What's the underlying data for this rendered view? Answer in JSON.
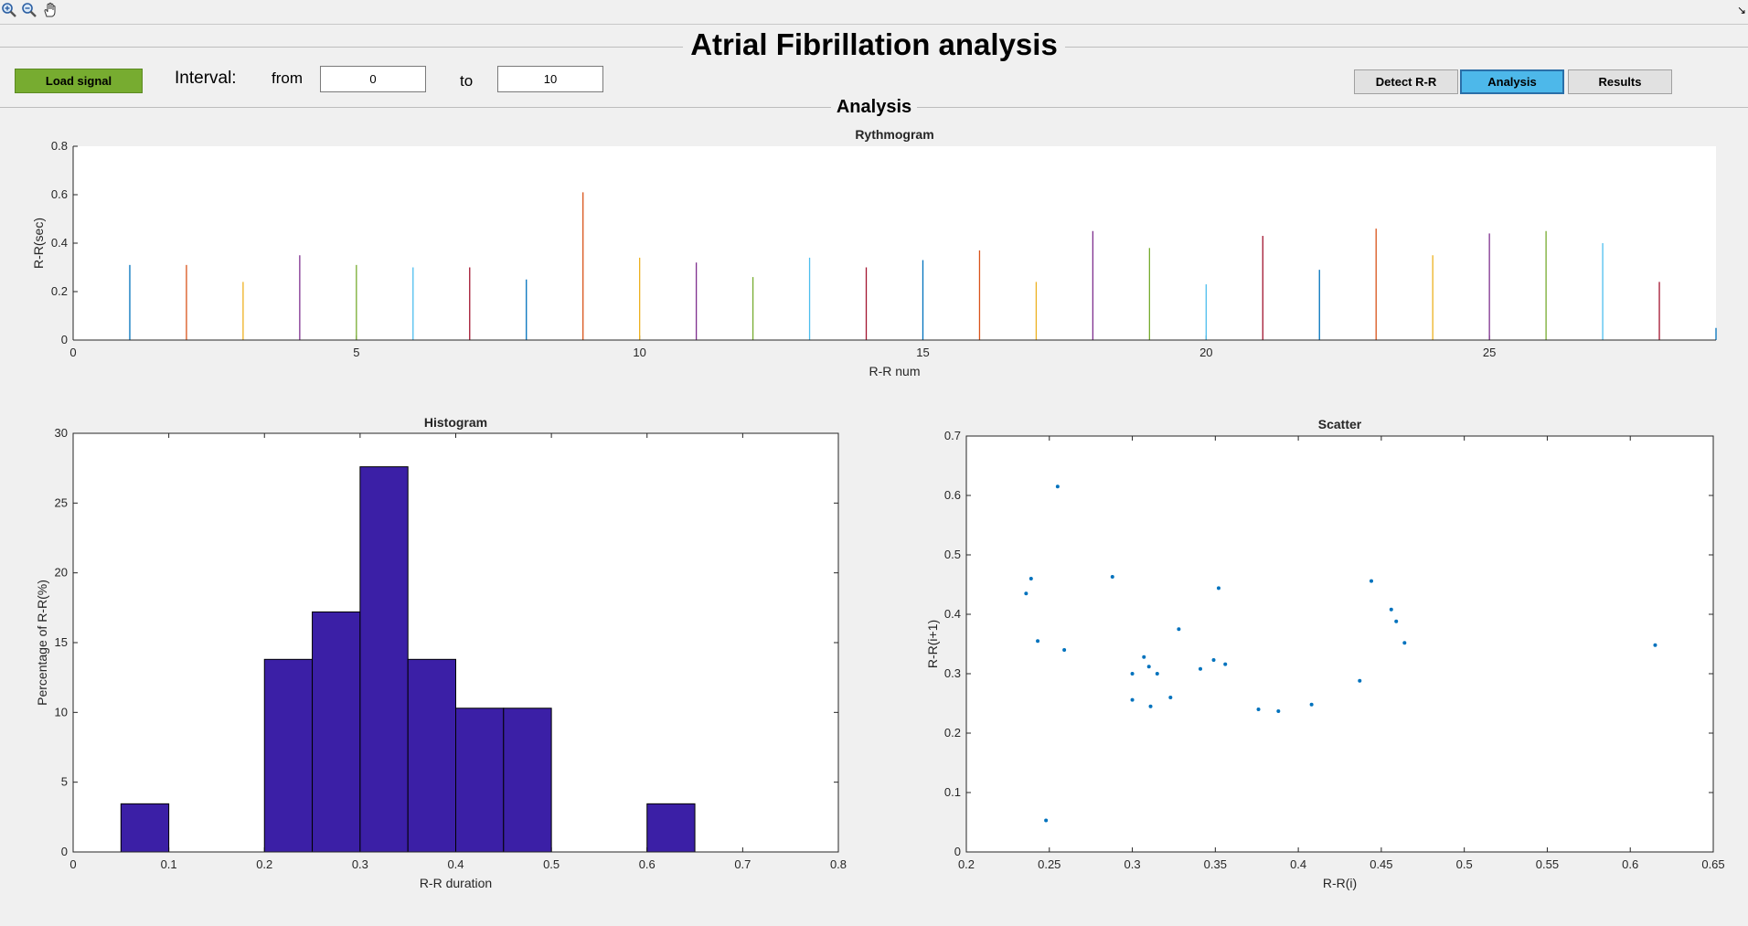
{
  "app": {
    "title": "Atrial Fibrillation analysis",
    "panel_title": "Analysis"
  },
  "toolbar": {
    "icons": [
      "zoom-in-icon",
      "zoom-out-icon",
      "pan-hand-icon"
    ],
    "corner_symbol": "↘"
  },
  "controls": {
    "load_label": "Load signal",
    "interval_label": "Interval:",
    "from_label": "from",
    "from_value": "0",
    "to_label": "to",
    "to_value": "10",
    "buttons": [
      {
        "label": "Detect R-R",
        "active": false
      },
      {
        "label": "Analysis",
        "active": true
      },
      {
        "label": "Results",
        "active": false
      }
    ]
  },
  "colors": {
    "load_button": "#77ac30",
    "active_button": "#4db8ea",
    "histogram_bar": "#3b1fa6",
    "scatter_point": "#0072bd"
  },
  "chart_data": [
    {
      "id": "rythmogram",
      "type": "bar",
      "title": "Rythmogram",
      "xlabel": "R-R num",
      "ylabel": "R-R(sec)",
      "xlim": [
        0,
        29
      ],
      "ylim": [
        0,
        0.8
      ],
      "xticks": [
        0,
        5,
        10,
        15,
        20,
        25
      ],
      "yticks": [
        0,
        0.2,
        0.4,
        0.6,
        0.8
      ],
      "x": [
        1,
        2,
        3,
        4,
        5,
        6,
        7,
        8,
        9,
        10,
        11,
        12,
        13,
        14,
        15,
        16,
        17,
        18,
        19,
        20,
        21,
        22,
        23,
        24,
        25,
        26,
        27,
        28,
        29
      ],
      "values": [
        0.31,
        0.31,
        0.24,
        0.35,
        0.31,
        0.3,
        0.3,
        0.25,
        0.61,
        0.34,
        0.32,
        0.26,
        0.34,
        0.3,
        0.33,
        0.37,
        0.24,
        0.45,
        0.38,
        0.23,
        0.43,
        0.29,
        0.46,
        0.35,
        0.44,
        0.45,
        0.4,
        0.24,
        0.05
      ],
      "series_colors": [
        "#0072bd",
        "#d95319",
        "#edb120",
        "#7e2f8e",
        "#77ac30",
        "#4dbeee",
        "#a2142f"
      ]
    },
    {
      "id": "histogram",
      "type": "bar",
      "title": "Histogram",
      "xlabel": "R-R duration",
      "ylabel": "Percentage of R-R(%)",
      "xlim": [
        0,
        0.8
      ],
      "ylim": [
        0,
        30
      ],
      "xticks": [
        0,
        0.1,
        0.2,
        0.3,
        0.4,
        0.5,
        0.6,
        0.7,
        0.8
      ],
      "yticks": [
        0,
        5,
        10,
        15,
        20,
        25,
        30
      ],
      "bin_edges": [
        0.05,
        0.1,
        0.15,
        0.2,
        0.25,
        0.3,
        0.35,
        0.4,
        0.45,
        0.5,
        0.55,
        0.6,
        0.65,
        0.7,
        0.75
      ],
      "values": [
        3.45,
        0,
        0,
        13.8,
        17.2,
        27.6,
        13.8,
        10.3,
        10.3,
        0,
        0,
        3.45,
        0,
        0
      ]
    },
    {
      "id": "scatter",
      "type": "scatter",
      "title": "Scatter",
      "xlabel": "R-R(i)",
      "ylabel": "R-R(i+1)",
      "xlim": [
        0.2,
        0.65
      ],
      "ylim": [
        0,
        0.7
      ],
      "xticks": [
        0.2,
        0.25,
        0.3,
        0.35,
        0.4,
        0.45,
        0.5,
        0.55,
        0.6,
        0.65
      ],
      "xtick_labels": [
        "0.2",
        "0.25",
        "0.3",
        "0.35",
        "0.4",
        "0.45",
        "0.5",
        "0.55",
        "0.6",
        "0.65"
      ],
      "yticks": [
        0,
        0.1,
        0.2,
        0.3,
        0.4,
        0.5,
        0.6,
        0.7
      ],
      "points": [
        [
          0.236,
          0.435
        ],
        [
          0.239,
          0.46
        ],
        [
          0.243,
          0.355
        ],
        [
          0.248,
          0.053
        ],
        [
          0.255,
          0.615
        ],
        [
          0.259,
          0.34
        ],
        [
          0.288,
          0.463
        ],
        [
          0.3,
          0.3
        ],
        [
          0.3,
          0.256
        ],
        [
          0.307,
          0.328
        ],
        [
          0.31,
          0.312
        ],
        [
          0.311,
          0.245
        ],
        [
          0.315,
          0.3
        ],
        [
          0.323,
          0.26
        ],
        [
          0.328,
          0.375
        ],
        [
          0.341,
          0.308
        ],
        [
          0.349,
          0.323
        ],
        [
          0.352,
          0.444
        ],
        [
          0.356,
          0.316
        ],
        [
          0.376,
          0.24
        ],
        [
          0.388,
          0.237
        ],
        [
          0.408,
          0.248
        ],
        [
          0.437,
          0.288
        ],
        [
          0.444,
          0.456
        ],
        [
          0.456,
          0.408
        ],
        [
          0.459,
          0.388
        ],
        [
          0.464,
          0.352
        ],
        [
          0.615,
          0.348
        ]
      ]
    }
  ]
}
